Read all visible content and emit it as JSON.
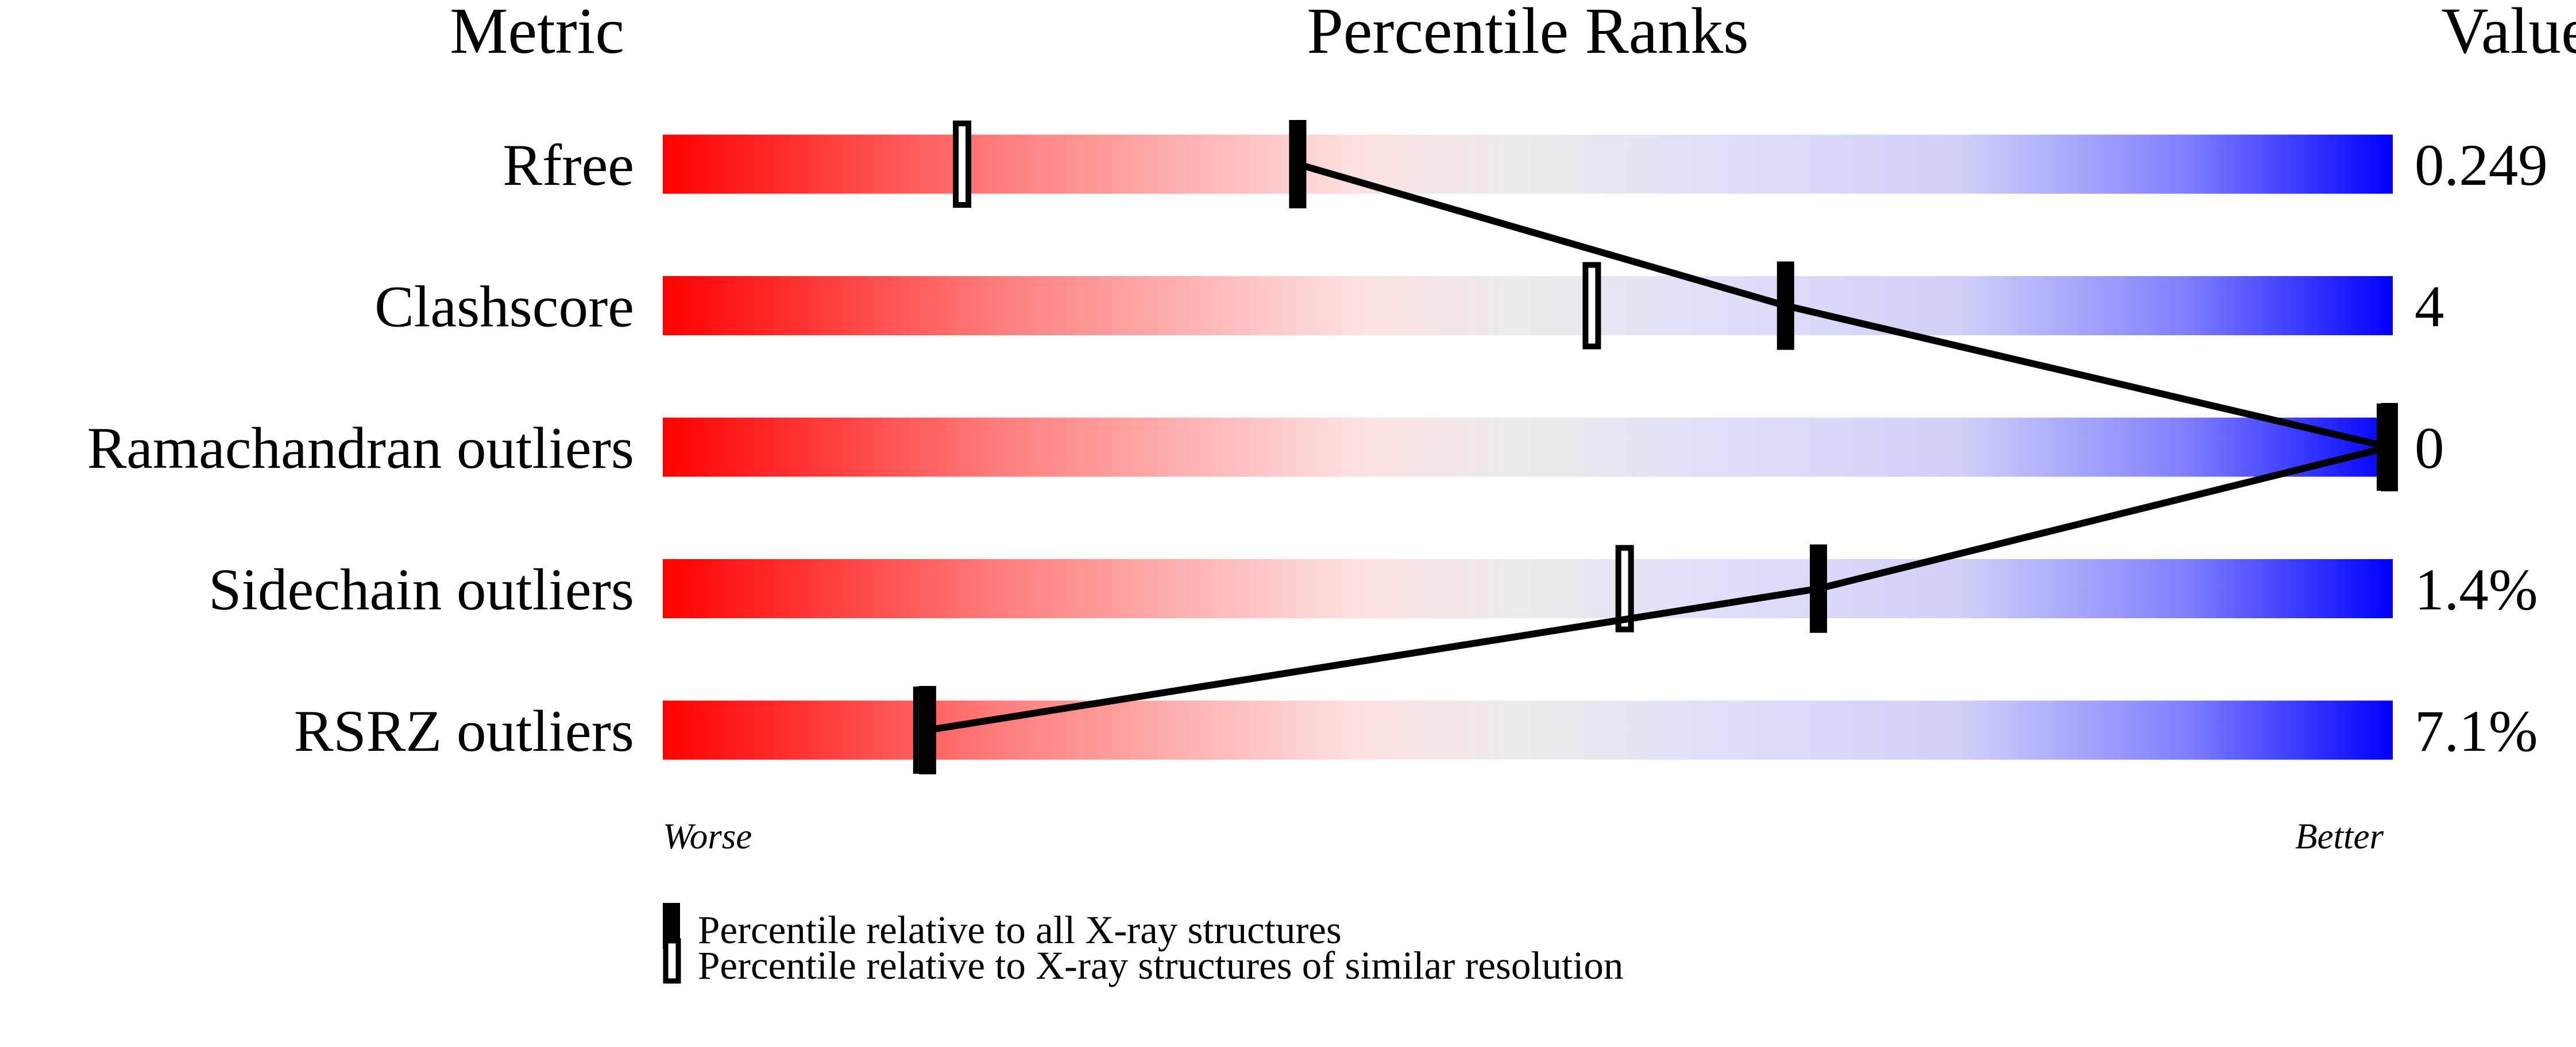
{
  "chart_data": {
    "type": "percentile-slider",
    "headers": {
      "metric": "Metric",
      "ranks": "Percentile Ranks",
      "value": "Value"
    },
    "xlim": [
      0,
      100
    ],
    "metrics": [
      {
        "name": "Rfree",
        "value": "0.249",
        "percentile_all": 36.7,
        "percentile_similar": 17.3
      },
      {
        "name": "Clashscore",
        "value": "4",
        "percentile_all": 64.9,
        "percentile_similar": 53.7
      },
      {
        "name": "Ramachandran outliers",
        "value": "0",
        "percentile_all": 100,
        "percentile_similar": 100
      },
      {
        "name": "Sidechain outliers",
        "value": "1.4%",
        "percentile_all": 66.8,
        "percentile_similar": 55.6
      },
      {
        "name": "RSRZ outliers",
        "value": "7.1%",
        "percentile_all": 15.3,
        "percentile_similar": 15.0
      }
    ],
    "axis_left_label": "Worse",
    "axis_right_label": "Better",
    "legend": [
      {
        "marker": "filled",
        "label": "Percentile relative to all X-ray structures"
      },
      {
        "marker": "open",
        "label": "Percentile relative to X-ray structures of similar resolution"
      }
    ],
    "gradient_colors": [
      "#ff0000",
      "#ff8080",
      "#fde0e0",
      "#ebebeb",
      "#e0e0fa",
      "#d0d0f8",
      "#8080ff",
      "#0000ff"
    ]
  }
}
